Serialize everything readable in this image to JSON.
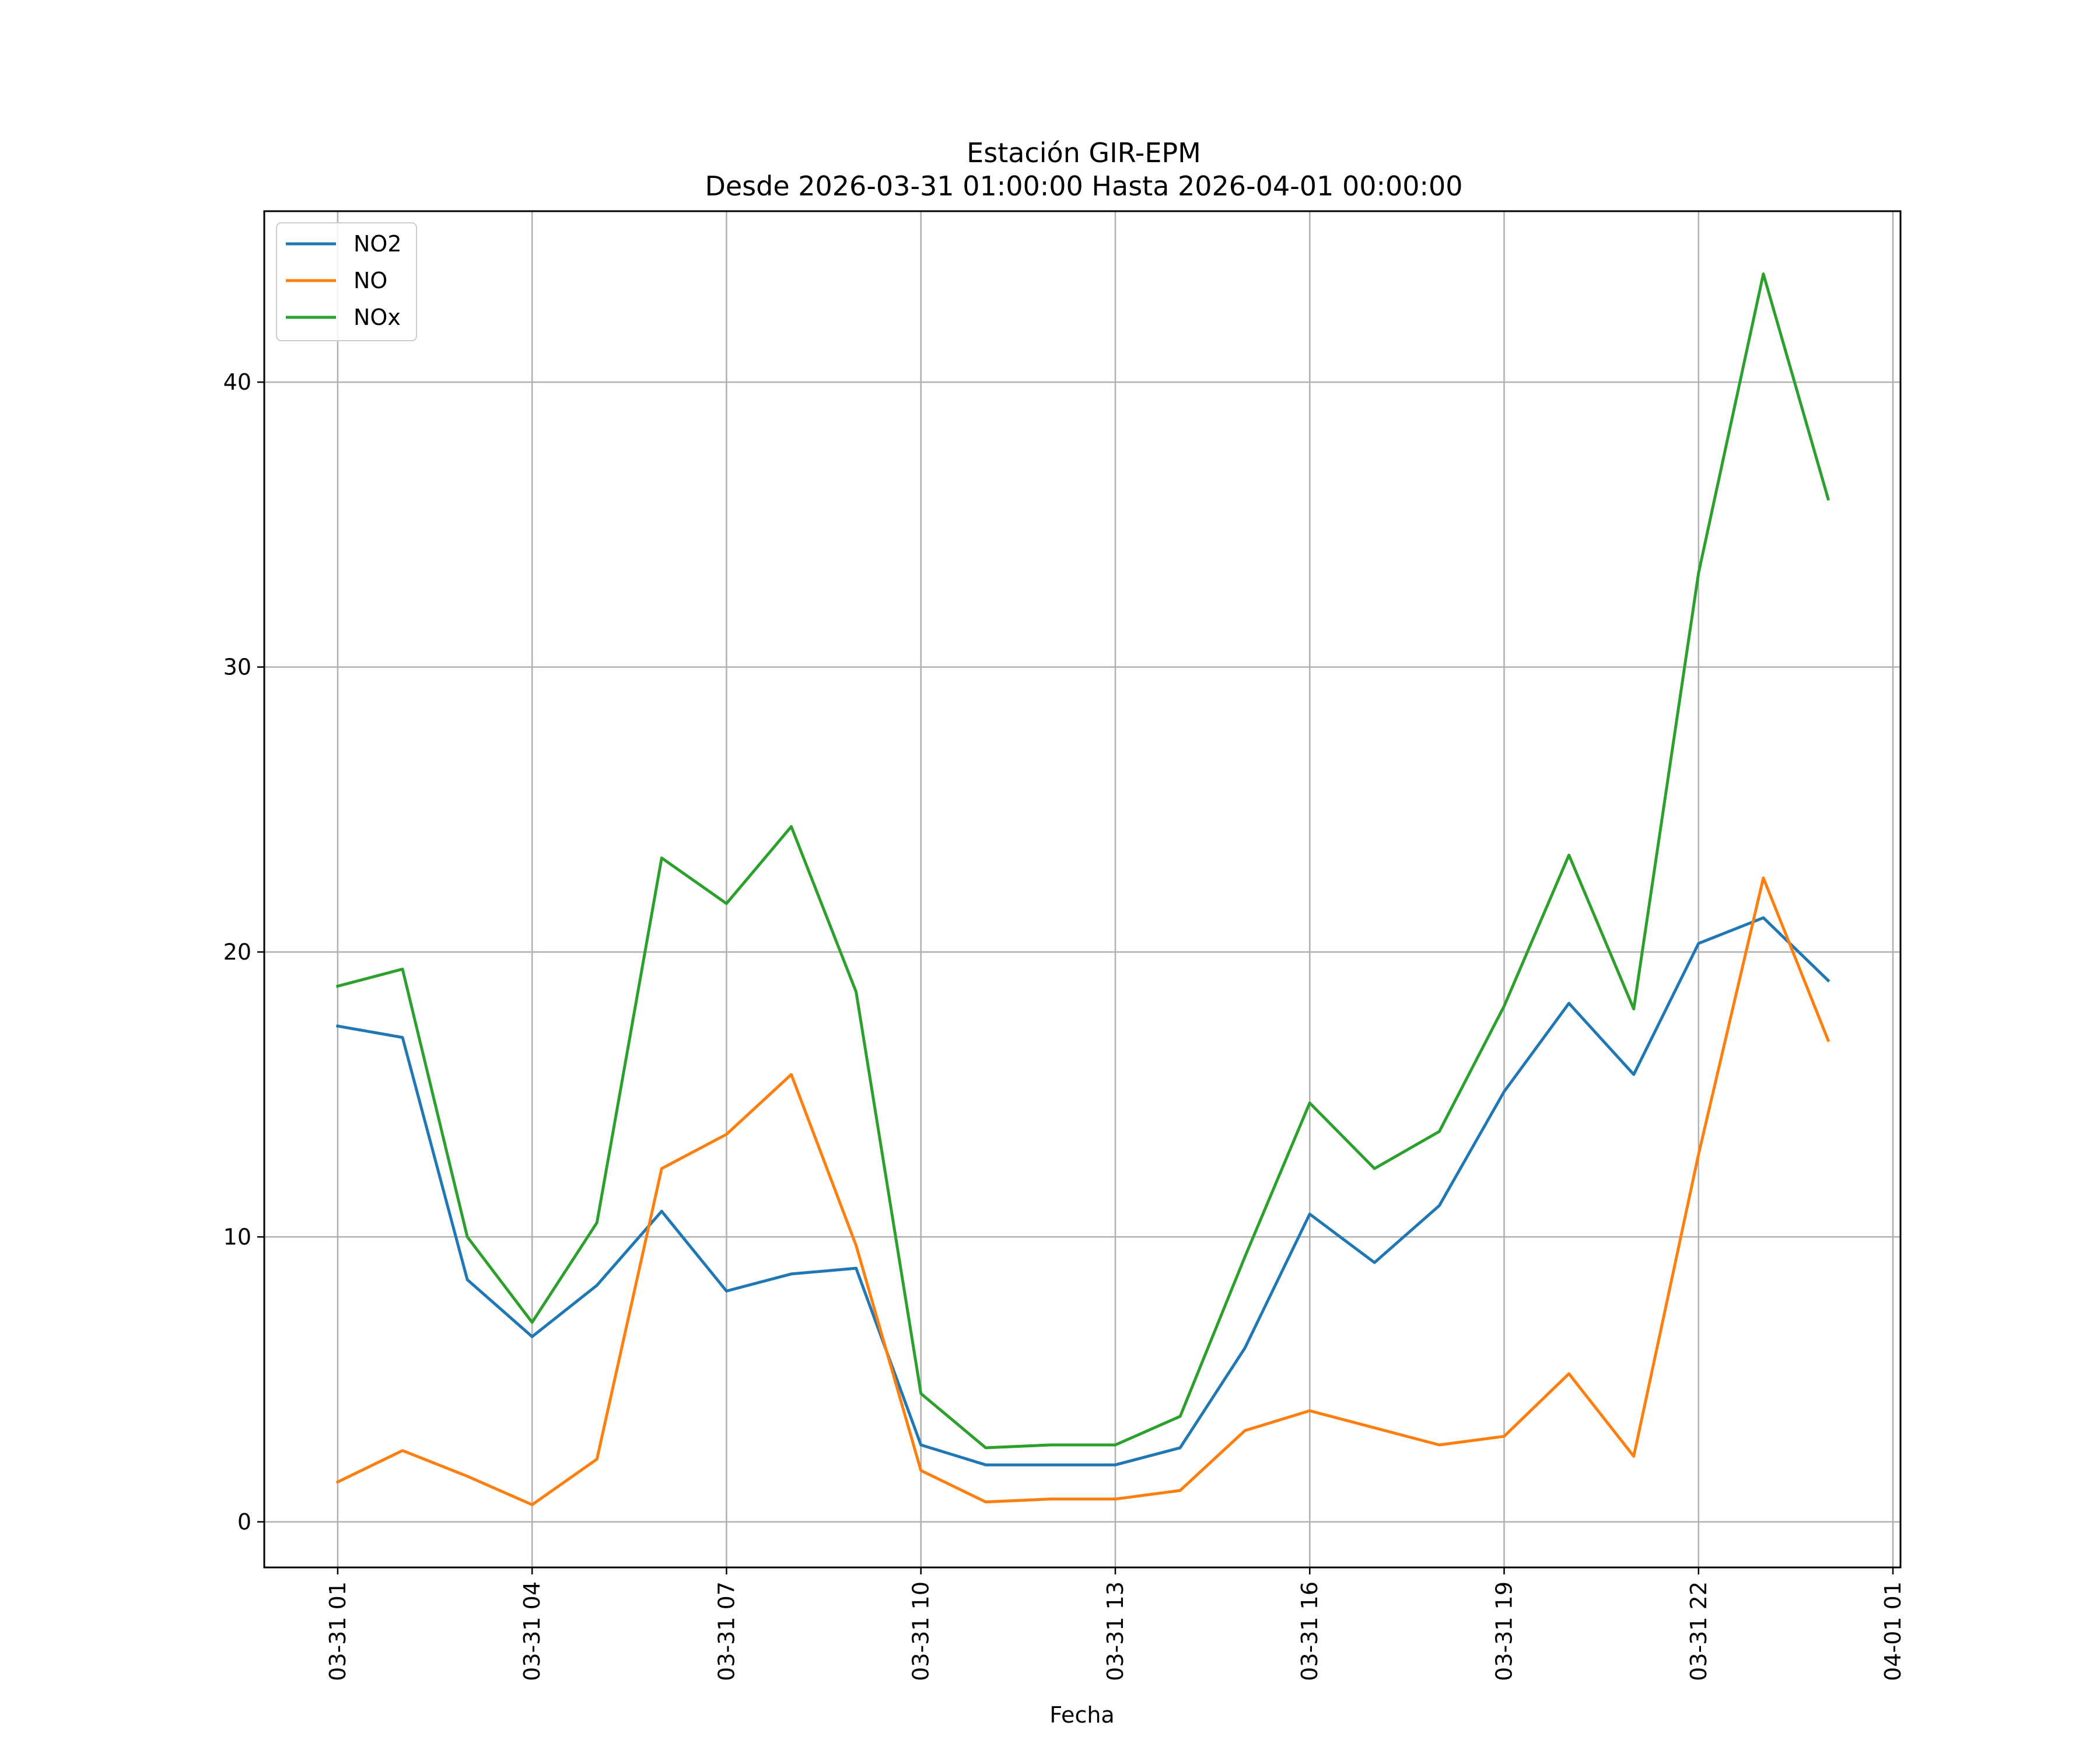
{
  "chart_data": {
    "type": "line",
    "title": "Estación GIR-EPM",
    "subtitle": "Desde 2026-03-31 01:00:00 Hasta 2026-04-01 00:00:00",
    "xlabel": "Fecha",
    "ylabel": "",
    "grid": true,
    "legend_position": "top-left",
    "x": [
      "03-31 01",
      "03-31 02",
      "03-31 03",
      "03-31 04",
      "03-31 05",
      "03-31 06",
      "03-31 07",
      "03-31 08",
      "03-31 09",
      "03-31 10",
      "03-31 11",
      "03-31 12",
      "03-31 13",
      "03-31 14",
      "03-31 15",
      "03-31 16",
      "03-31 17",
      "03-31 18",
      "03-31 19",
      "03-31 20",
      "03-31 21",
      "03-31 22",
      "03-31 23",
      "04-01 00"
    ],
    "xlim": [
      "03-30 23:52",
      "04-01 01:07"
    ],
    "xticks": [
      "03-31 01",
      "03-31 04",
      "03-31 07",
      "03-31 10",
      "03-31 13",
      "03-31 16",
      "03-31 19",
      "03-31 22",
      "04-01 01"
    ],
    "ylim": [
      -1.6,
      46
    ],
    "yticks": [
      0,
      10,
      20,
      30,
      40
    ],
    "series": [
      {
        "name": "NO2",
        "color": "#1f77b4",
        "values": [
          17.4,
          17.0,
          8.5,
          6.5,
          8.3,
          10.9,
          8.1,
          8.7,
          8.9,
          2.7,
          2.0,
          2.0,
          2.0,
          2.6,
          6.1,
          10.8,
          9.1,
          11.1,
          15.1,
          18.2,
          15.7,
          20.3,
          21.2,
          19.0
        ]
      },
      {
        "name": "NO",
        "color": "#ff7f0e",
        "values": [
          1.4,
          2.5,
          1.6,
          0.6,
          2.2,
          12.4,
          13.6,
          15.7,
          9.7,
          1.8,
          0.7,
          0.8,
          0.8,
          1.1,
          3.2,
          3.9,
          3.3,
          2.7,
          3.0,
          5.2,
          2.3,
          12.9,
          22.6,
          16.9
        ]
      },
      {
        "name": "NOx",
        "color": "#2ca02c",
        "values": [
          18.8,
          19.4,
          10.0,
          7.0,
          10.5,
          23.3,
          21.7,
          24.4,
          18.6,
          4.5,
          2.6,
          2.7,
          2.7,
          3.7,
          9.3,
          14.7,
          12.4,
          13.7,
          18.1,
          23.4,
          18.0,
          33.3,
          43.8,
          35.9
        ]
      }
    ]
  }
}
